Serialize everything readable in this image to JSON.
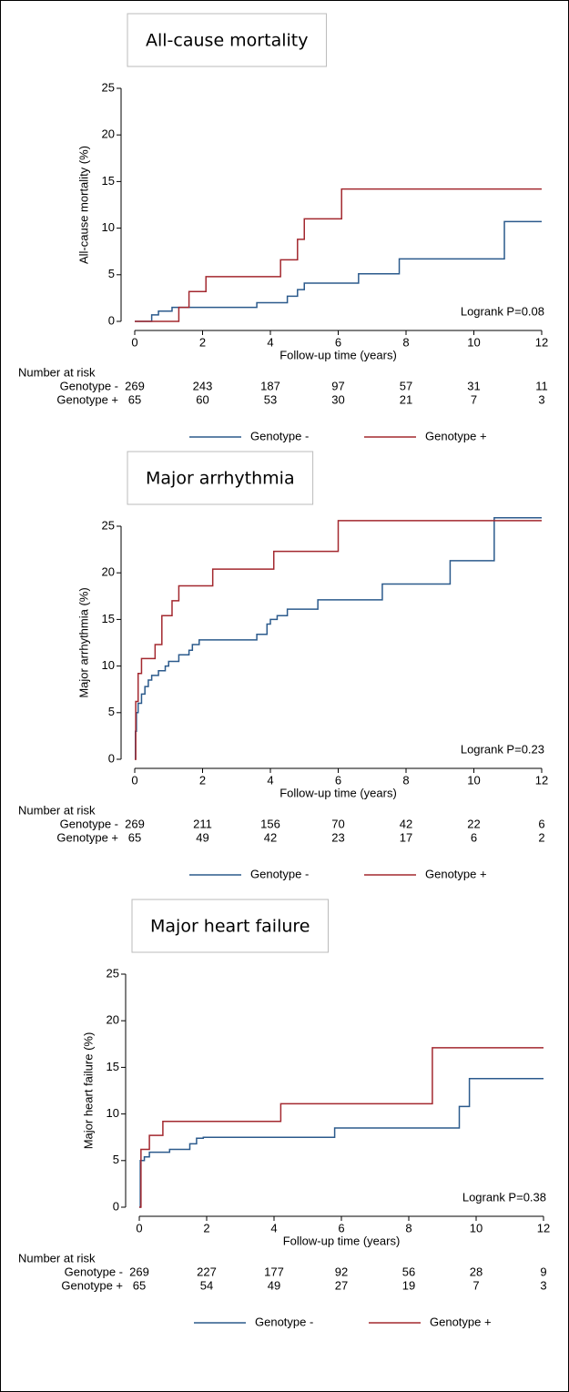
{
  "chart_data": [
    {
      "type": "step",
      "title": "All-cause mortality",
      "y_label": "All-cause mortality (%)",
      "x_label": "Follow-up time (years)",
      "annotation": "Logrank P=0.08",
      "xlim": [
        0,
        12
      ],
      "ylim": [
        0,
        25
      ],
      "xticks": [
        0,
        2,
        4,
        6,
        8,
        10,
        12
      ],
      "yticks": [
        0,
        5,
        10,
        15,
        20,
        25
      ],
      "series": [
        {
          "name": "Genotype -",
          "color": "#2b5a8c",
          "x": [
            0,
            0.5,
            0.7,
            1.1,
            3.6,
            4.5,
            4.8,
            5.0,
            6.6,
            7.8,
            10.9,
            12
          ],
          "values": [
            0,
            0.7,
            1.1,
            1.5,
            2.0,
            2.7,
            3.4,
            4.1,
            5.1,
            6.7,
            10.7,
            10.7
          ]
        },
        {
          "name": "Genotype +",
          "color": "#a3282f",
          "x": [
            0,
            1.3,
            1.6,
            2.1,
            4.3,
            4.8,
            5.0,
            6.1,
            12
          ],
          "values": [
            0,
            1.5,
            3.2,
            4.8,
            6.6,
            8.8,
            11.0,
            14.2,
            14.2
          ]
        }
      ],
      "risk_title": "Number at risk",
      "at_risk": [
        [
          269,
          243,
          187,
          97,
          57,
          31,
          11
        ],
        [
          65,
          60,
          53,
          30,
          21,
          7,
          3
        ]
      ]
    },
    {
      "type": "step",
      "title": "Major arrhythmia",
      "y_label": "Major arrhythmia (%)",
      "x_label": "Follow-up time (years)",
      "annotation": "Logrank P=0.23",
      "xlim": [
        0,
        12
      ],
      "ylim": [
        0,
        25
      ],
      "xticks": [
        0,
        2,
        4,
        6,
        8,
        10,
        12
      ],
      "yticks": [
        0,
        5,
        10,
        15,
        20,
        25
      ],
      "series": [
        {
          "name": "Genotype -",
          "color": "#2b5a8c",
          "x": [
            0,
            0.02,
            0.05,
            0.1,
            0.2,
            0.3,
            0.4,
            0.5,
            0.7,
            0.9,
            1.0,
            1.3,
            1.6,
            1.7,
            1.9,
            3.6,
            3.9,
            4.0,
            4.2,
            4.5,
            5.4,
            7.3,
            9.3,
            10.6,
            12
          ],
          "values": [
            0,
            3,
            5,
            6,
            7,
            7.8,
            8.5,
            9,
            9.5,
            10,
            10.5,
            11.2,
            11.7,
            12.3,
            12.8,
            13.4,
            14.5,
            15.0,
            15.4,
            16.1,
            17.1,
            18.8,
            21.3,
            25.9,
            25.9
          ]
        },
        {
          "name": "Genotype +",
          "color": "#a3282f",
          "x": [
            0,
            0.03,
            0.1,
            0.2,
            0.6,
            0.8,
            1.1,
            1.3,
            2.3,
            4.1,
            6.0,
            12
          ],
          "values": [
            0,
            6.2,
            9.2,
            10.8,
            12.3,
            15.4,
            17.0,
            18.6,
            20.4,
            22.3,
            25.6,
            25.6
          ]
        }
      ],
      "risk_title": "Number at risk",
      "at_risk": [
        [
          269,
          211,
          156,
          70,
          42,
          22,
          6
        ],
        [
          65,
          49,
          42,
          23,
          17,
          6,
          2
        ]
      ]
    },
    {
      "type": "step",
      "title": "Major heart failure",
      "y_label": "Major heart failure (%)",
      "x_label": "Follow-up time (years)",
      "annotation": "Logrank P=0.38",
      "xlim": [
        0,
        12
      ],
      "ylim": [
        0,
        25
      ],
      "xticks": [
        0,
        2,
        4,
        6,
        8,
        10,
        12
      ],
      "yticks": [
        0,
        5,
        10,
        15,
        20,
        25
      ],
      "series": [
        {
          "name": "Genotype -",
          "color": "#2b5a8c",
          "x": [
            0,
            0.03,
            0.15,
            0.3,
            0.9,
            1.5,
            1.7,
            1.9,
            5.8,
            9.5,
            9.8,
            12
          ],
          "values": [
            0,
            5.0,
            5.4,
            5.9,
            6.2,
            6.8,
            7.4,
            7.5,
            8.5,
            10.8,
            13.8,
            13.8
          ]
        },
        {
          "name": "Genotype +",
          "color": "#a3282f",
          "x": [
            0,
            0.05,
            0.3,
            0.7,
            4.2,
            8.7,
            12
          ],
          "values": [
            0,
            6.2,
            7.7,
            9.2,
            11.1,
            17.1,
            17.1
          ]
        }
      ],
      "risk_title": "Number at risk",
      "at_risk": [
        [
          269,
          227,
          177,
          92,
          56,
          28,
          9
        ],
        [
          65,
          54,
          49,
          27,
          19,
          7,
          3
        ]
      ]
    }
  ]
}
